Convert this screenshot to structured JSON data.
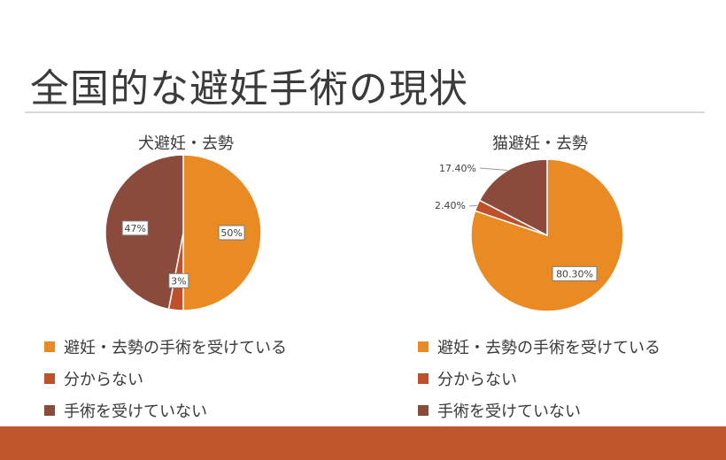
{
  "slide": {
    "title": "全国的な避妊手術の現状"
  },
  "colors": {
    "accent_orange": "#e98a22",
    "accent_red": "#c0502a",
    "accent_brown": "#8a4b3c",
    "footer": "#c0562b"
  },
  "chart_data": [
    {
      "type": "pie",
      "title": "犬避妊・去勢",
      "categories": [
        "避妊・去勢の手術を受けている",
        "分からない",
        "手術を受けていない"
      ],
      "values": [
        50,
        3,
        47
      ],
      "labels": [
        "50%",
        "3%",
        "47%"
      ],
      "label_style": [
        "inside",
        "inside",
        "inside"
      ],
      "colors": [
        "#e98a22",
        "#c0502a",
        "#8a4b3c"
      ],
      "legend": "bottom-left"
    },
    {
      "type": "pie",
      "title": "猫避妊・去勢",
      "categories": [
        "避妊・去勢の手術を受けている",
        "分からない",
        "手術を受けていない"
      ],
      "values": [
        80.3,
        2.4,
        17.4
      ],
      "labels": [
        "80.30%",
        "2.40%",
        "17.40%"
      ],
      "label_style": [
        "inside",
        "outside",
        "outside"
      ],
      "colors": [
        "#e98a22",
        "#c0502a",
        "#8a4b3c"
      ],
      "legend": "bottom-left"
    }
  ]
}
